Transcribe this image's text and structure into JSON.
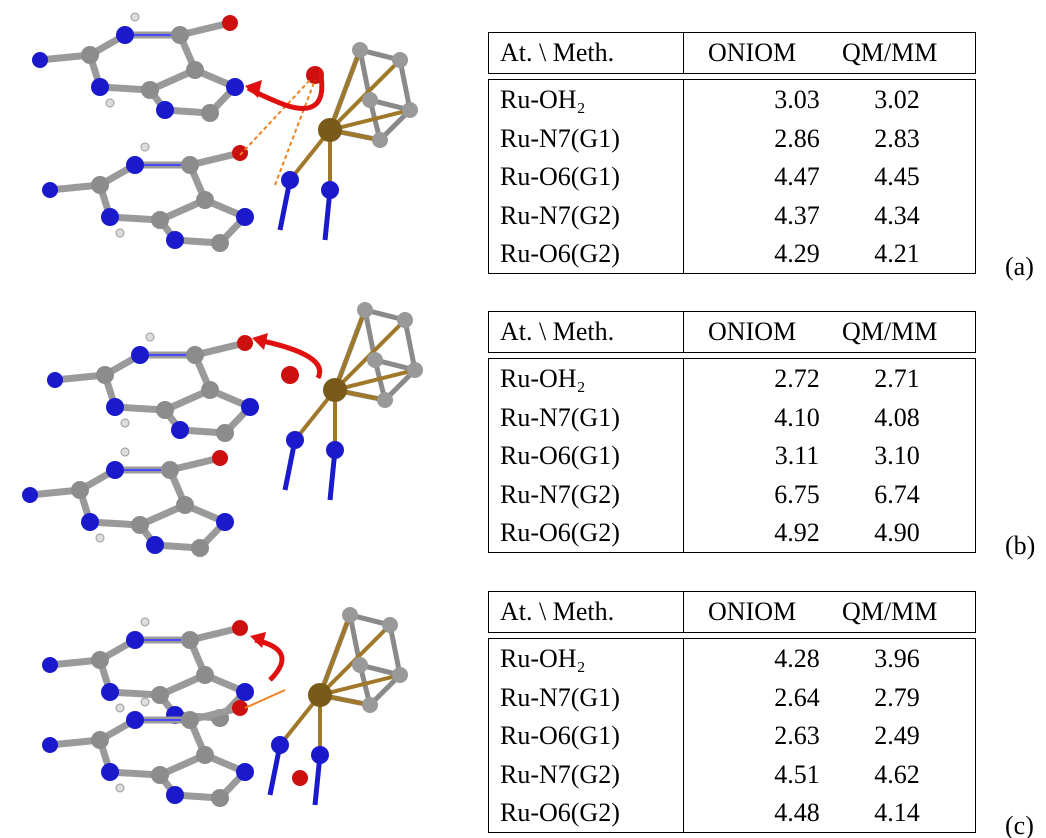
{
  "panels": [
    {
      "label": "(a)",
      "table": {
        "header": [
          "At. \\ Meth.",
          "ONIOM",
          "QM/MM"
        ],
        "rows": [
          [
            "Ru-OH₂",
            "3.03",
            "3.02"
          ],
          [
            "Ru-N7(G1)",
            "2.86",
            "2.83"
          ],
          [
            "Ru-O6(G1)",
            "4.47",
            "4.45"
          ],
          [
            "Ru-N7(G2)",
            "4.37",
            "4.34"
          ],
          [
            "Ru-O6(G2)",
            "4.29",
            "4.21"
          ]
        ]
      }
    },
    {
      "label": "(b)",
      "table": {
        "header": [
          "At. \\ Meth.",
          "ONIOM",
          "QM/MM"
        ],
        "rows": [
          [
            "Ru-OH₂",
            "2.72",
            "2.71"
          ],
          [
            "Ru-N7(G1)",
            "4.10",
            "4.08"
          ],
          [
            "Ru-O6(G1)",
            "3.11",
            "3.10"
          ],
          [
            "Ru-N7(G2)",
            "6.75",
            "6.74"
          ],
          [
            "Ru-O6(G2)",
            "4.92",
            "4.90"
          ]
        ]
      }
    },
    {
      "label": "(c)",
      "table": {
        "header": [
          "At. \\ Meth.",
          "ONIOM",
          "QM/MM"
        ],
        "rows": [
          [
            "Ru-OH₂",
            "4.28",
            "3.96"
          ],
          [
            "Ru-N7(G1)",
            "2.64",
            "2.79"
          ],
          [
            "Ru-O6(G1)",
            "2.63",
            "2.49"
          ],
          [
            "Ru-N7(G2)",
            "4.51",
            "4.62"
          ],
          [
            "Ru-O6(G2)",
            "4.48",
            "4.14"
          ]
        ]
      }
    }
  ]
}
